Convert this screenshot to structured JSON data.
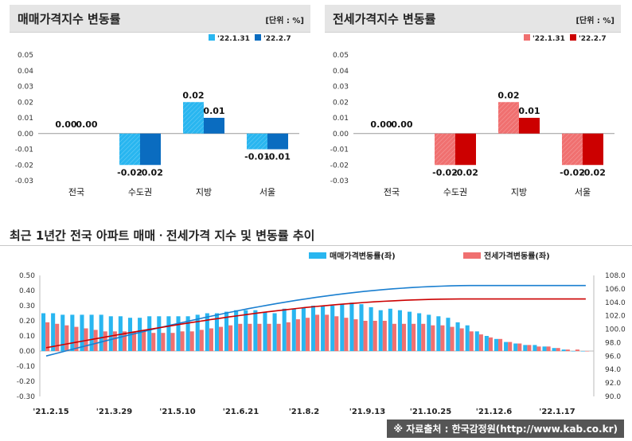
{
  "left_panel": {
    "title": "매매가격지수 변동률",
    "unit": "[단위 : %]"
  },
  "right_panel": {
    "title": "전세가격지수 변동률",
    "unit": "[단위 : %]"
  },
  "bottom_panel": {
    "title": "최근 1년간 전국 아파트 매매ㆍ전세가격 지수 및 변동률 추이"
  },
  "source": "※ 자료출처 : 한국감정원(http://www.kab.co.kr)",
  "colors": {
    "sale_light": "#29b6f0",
    "sale_dark": "#0a6cc0",
    "jeonse_light": "#f07070",
    "jeonse_dark": "#cc0000",
    "sale_line": "#1a7fd0",
    "jeonse_line": "#cc0000"
  },
  "chart_data": [
    {
      "type": "bar",
      "title": "매매가격지수 변동률",
      "categories": [
        "전국",
        "수도권",
        "지방",
        "서울"
      ],
      "series": [
        {
          "name": "'22.1.31",
          "values": [
            0.0,
            -0.02,
            0.02,
            -0.01
          ]
        },
        {
          "name": "'22.2.7",
          "values": [
            0.0,
            -0.02,
            0.01,
            -0.01
          ]
        }
      ],
      "data_labels": [
        [
          "0.00",
          "-0.02",
          "0.02",
          "-0.01"
        ],
        [
          "0.00",
          "-0.02",
          "0.01",
          "-0.01"
        ]
      ],
      "ylim": [
        -0.03,
        0.05
      ],
      "yticks": [
        "0.05",
        "0.04",
        "0.03",
        "0.02",
        "0.01",
        "0.00",
        "-0.01",
        "-0.02",
        "-0.03"
      ],
      "legend": "top-right"
    },
    {
      "type": "bar",
      "title": "전세가격지수 변동률",
      "categories": [
        "전국",
        "수도권",
        "지방",
        "서울"
      ],
      "series": [
        {
          "name": "'22.1.31",
          "values": [
            0.0,
            -0.02,
            0.02,
            -0.02
          ]
        },
        {
          "name": "'22.2.7",
          "values": [
            0.0,
            -0.02,
            0.01,
            -0.02
          ]
        }
      ],
      "data_labels": [
        [
          "0.00",
          "-0.02",
          "0.02",
          "-0.02"
        ],
        [
          "0.00",
          "-0.02",
          "0.01",
          "-0.02"
        ]
      ],
      "ylim": [
        -0.03,
        0.05
      ],
      "yticks": [
        "0.05",
        "0.04",
        "0.03",
        "0.02",
        "0.01",
        "0.00",
        "-0.01",
        "-0.02",
        "-0.03"
      ],
      "legend": "top-right"
    },
    {
      "type": "bar",
      "title": "최근 1년간 전국 아파트 매매ㆍ전세가격 지수 및 변동률 추이",
      "x_tick_labels": [
        "'21.2.15",
        "'21.3.29",
        "'21.5.10",
        "'21.6.21",
        "'21.8.2",
        "'21.9.13",
        "'21.10.25",
        "'21.12.6",
        "'22.1.17"
      ],
      "bar_series": [
        {
          "name": "매매가격변동률(좌)",
          "axis": "left",
          "values": [
            0.25,
            0.25,
            0.24,
            0.24,
            0.24,
            0.24,
            0.24,
            0.23,
            0.23,
            0.22,
            0.22,
            0.23,
            0.23,
            0.23,
            0.23,
            0.23,
            0.24,
            0.25,
            0.25,
            0.26,
            0.27,
            0.27,
            0.27,
            0.26,
            0.25,
            0.28,
            0.28,
            0.29,
            0.3,
            0.3,
            0.3,
            0.31,
            0.32,
            0.31,
            0.29,
            0.27,
            0.28,
            0.27,
            0.26,
            0.25,
            0.24,
            0.23,
            0.22,
            0.19,
            0.17,
            0.13,
            0.1,
            0.08,
            0.06,
            0.05,
            0.04,
            0.04,
            0.03,
            0.02,
            0.01,
            0.0,
            0.0
          ]
        },
        {
          "name": "전세가격변동률(좌)",
          "axis": "left",
          "values": [
            0.19,
            0.18,
            0.17,
            0.16,
            0.15,
            0.14,
            0.13,
            0.13,
            0.13,
            0.13,
            0.13,
            0.12,
            0.12,
            0.12,
            0.13,
            0.13,
            0.14,
            0.15,
            0.16,
            0.17,
            0.18,
            0.18,
            0.18,
            0.18,
            0.18,
            0.19,
            0.21,
            0.22,
            0.24,
            0.24,
            0.23,
            0.22,
            0.21,
            0.2,
            0.2,
            0.2,
            0.18,
            0.18,
            0.18,
            0.18,
            0.17,
            0.17,
            0.16,
            0.15,
            0.13,
            0.11,
            0.09,
            0.08,
            0.06,
            0.05,
            0.04,
            0.03,
            0.03,
            0.02,
            0.01,
            0.01,
            0.0
          ]
        }
      ],
      "line_series": [
        {
          "name": "매매가격지수(우)",
          "axis": "right",
          "start": 95.8,
          "end": 106.5,
          "shape": "saturating"
        },
        {
          "name": "전세가격지수(우)",
          "axis": "right",
          "start": 97.1,
          "end": 104.5,
          "shape": "saturating"
        }
      ],
      "ylim": [
        -0.3,
        0.5
      ],
      "yticks": [
        "0.50",
        "0.40",
        "0.30",
        "0.20",
        "0.10",
        "0.00",
        "-0.10",
        "-0.20",
        "-0.30"
      ],
      "y2lim": [
        90.0,
        108.0
      ],
      "y2ticks": [
        "108.0",
        "106.0",
        "104.0",
        "102.0",
        "100.0",
        "98.0",
        "96.0",
        "94.0",
        "92.0",
        "90.0"
      ],
      "legend": "top-right"
    }
  ]
}
